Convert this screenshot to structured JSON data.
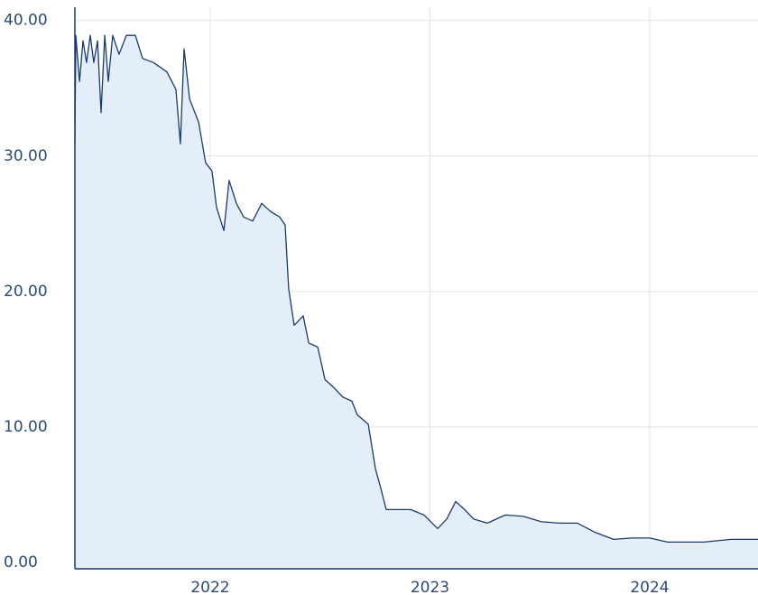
{
  "chart_data": {
    "type": "area",
    "x": [
      2021.384,
      2021.388,
      2021.405,
      2021.421,
      2021.437,
      2021.454,
      2021.47,
      2021.487,
      2021.503,
      2021.52,
      2021.536,
      2021.556,
      2021.585,
      2021.618,
      2021.659,
      2021.692,
      2021.741,
      2021.803,
      2021.844,
      2021.864,
      2021.881,
      2021.906,
      2021.947,
      2021.979,
      2022.008,
      2022.029,
      2022.062,
      2022.086,
      2022.119,
      2022.152,
      2022.193,
      2022.234,
      2022.275,
      2022.316,
      2022.341,
      2022.357,
      2022.382,
      2022.423,
      2022.448,
      2022.489,
      2022.522,
      2022.563,
      2022.604,
      2022.645,
      2022.669,
      2022.719,
      2022.752,
      2022.776,
      2022.801,
      2022.85,
      2022.912,
      2022.973,
      2023.035,
      2023.076,
      2023.117,
      2023.158,
      2023.199,
      2023.261,
      2023.343,
      2023.425,
      2023.507,
      2023.589,
      2023.671,
      2023.754,
      2023.836,
      2023.918,
      2024.0,
      2024.082,
      2024.246,
      2024.37,
      2024.493
    ],
    "values": [
      30.9,
      38.9,
      35.5,
      38.5,
      36.9,
      38.9,
      36.9,
      38.5,
      33.2,
      38.9,
      35.5,
      38.9,
      37.5,
      38.9,
      38.9,
      37.2,
      36.9,
      36.2,
      34.9,
      30.9,
      37.9,
      34.2,
      32.5,
      29.5,
      28.9,
      26.2,
      24.5,
      28.2,
      26.5,
      25.5,
      25.2,
      26.5,
      25.9,
      25.5,
      24.9,
      20.2,
      17.5,
      18.2,
      16.2,
      15.9,
      13.5,
      12.9,
      12.2,
      11.9,
      10.9,
      10.2,
      6.9,
      5.5,
      3.9,
      3.9,
      3.9,
      3.5,
      2.5,
      3.2,
      4.5,
      3.9,
      3.2,
      2.9,
      3.5,
      3.4,
      3.0,
      2.9,
      2.9,
      2.2,
      1.7,
      1.8,
      1.8,
      1.5,
      1.5,
      1.7,
      1.7
    ],
    "color": "#1b3a6b",
    "fill": "#e3eef9",
    "xlim": [
      2021.384,
      2024.493
    ],
    "xticks": [
      2022,
      2023,
      2024
    ],
    "ylim": [
      -0.47,
      40.98
    ],
    "yticks": [
      {
        "value": 0,
        "label": "0.00"
      },
      {
        "value": 10,
        "label": "10.00"
      },
      {
        "value": 20,
        "label": "20.00"
      },
      {
        "value": 30,
        "label": "30.00"
      },
      {
        "value": 40,
        "label": "40.00"
      }
    ],
    "grid": true
  }
}
